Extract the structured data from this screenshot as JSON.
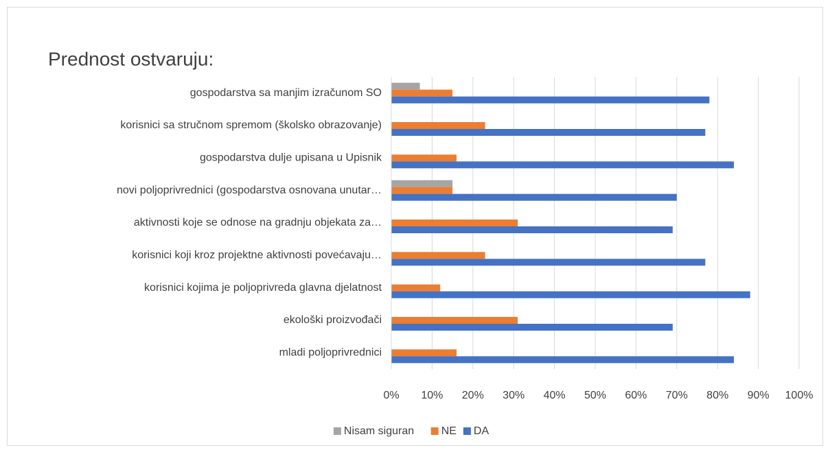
{
  "chart_data": {
    "type": "hbar",
    "title": "Prednost ostvaruju:",
    "categories": [
      "gospodarstva sa manjim izračunom SO",
      "korisnici sa stručnom spremom (školsko obrazovanje)",
      "gospodarstva dulje upisana u Upisnik",
      "novi poljoprivrednici (gospodarstva osnovana unutar…",
      "aktivnosti koje se odnose na gradnju objekata za…",
      "korisnici koji kroz projektne aktivnosti povećavaju…",
      "korisnici kojima je poljoprivreda glavna djelatnost",
      "ekološki proizvođači",
      "mladi poljoprivrednici"
    ],
    "series": [
      {
        "name": "Nisam siguran",
        "color": "#a5a5a5",
        "values": [
          7,
          0,
          0,
          15,
          0,
          0,
          0,
          0,
          0
        ]
      },
      {
        "name": "NE",
        "color": "#ed7d31",
        "values": [
          15,
          23,
          16,
          15,
          31,
          23,
          12,
          31,
          16
        ]
      },
      {
        "name": "DA",
        "color": "#4472c4",
        "values": [
          78,
          77,
          84,
          70,
          69,
          77,
          88,
          69,
          84
        ]
      }
    ],
    "xlim": [
      0,
      100
    ],
    "xticks": [
      {
        "value": 0,
        "label": "0%"
      },
      {
        "value": 10,
        "label": "10%"
      },
      {
        "value": 20,
        "label": "20%"
      },
      {
        "value": 30,
        "label": "30%"
      },
      {
        "value": 40,
        "label": "40%"
      },
      {
        "value": 50,
        "label": "50%"
      },
      {
        "value": 60,
        "label": "60%"
      },
      {
        "value": 70,
        "label": "70%"
      },
      {
        "value": 80,
        "label": "80%"
      },
      {
        "value": 90,
        "label": "90%"
      },
      {
        "value": 100,
        "label": "100%"
      }
    ],
    "grid": true,
    "legend": "bottom"
  }
}
